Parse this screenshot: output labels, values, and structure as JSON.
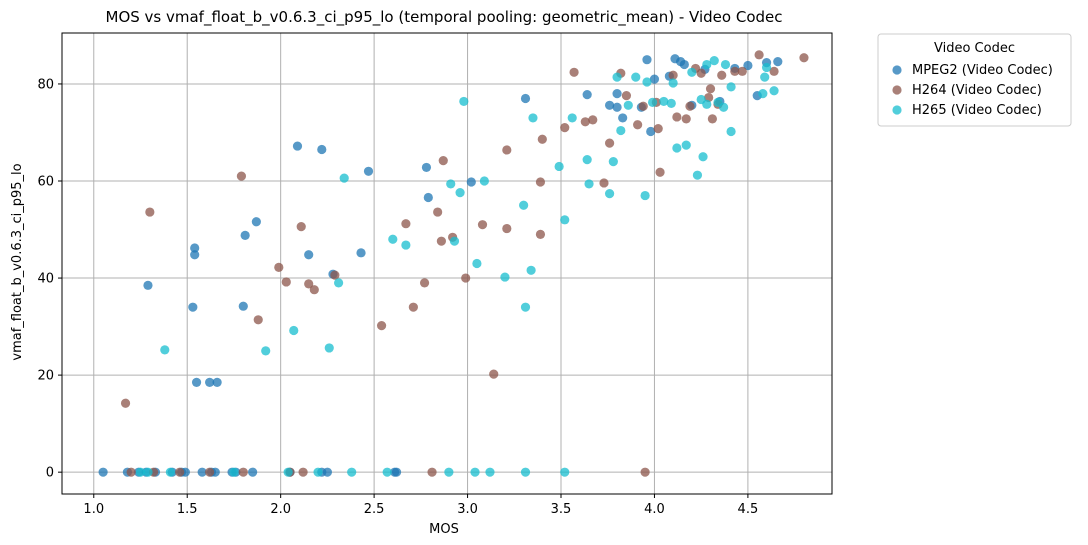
{
  "chart_data": {
    "type": "scatter",
    "title": "MOS vs vmaf_float_b_v0.6.3_ci_p95_lo (temporal pooling: geometric_mean) - Video Codec",
    "xlabel": "MOS",
    "ylabel": "vmaf_float_b_v0.6.3_ci_p95_lo",
    "xlim": [
      0.83,
      4.95
    ],
    "ylim": [
      -4.5,
      90.5
    ],
    "xticks": [
      "1.0",
      "1.5",
      "2.0",
      "2.5",
      "3.0",
      "3.5",
      "4.0",
      "4.5"
    ],
    "yticks": [
      "0",
      "20",
      "40",
      "60",
      "80"
    ],
    "grid": true,
    "legend": {
      "title": "Video Codec",
      "placement": "outside-top-right"
    },
    "series": [
      {
        "name": "MPEG2 (Video Codec)",
        "color": "#1f77b4",
        "points": [
          [
            1.05,
            0
          ],
          [
            1.29,
            38.5
          ],
          [
            1.53,
            34
          ],
          [
            1.54,
            46.2
          ],
          [
            1.54,
            44.8
          ],
          [
            1.55,
            18.5
          ],
          [
            1.62,
            18.5
          ],
          [
            1.66,
            18.5
          ],
          [
            1.8,
            34.2
          ],
          [
            1.81,
            48.8
          ],
          [
            1.87,
            51.6
          ],
          [
            2.09,
            67.2
          ],
          [
            2.15,
            44.8
          ],
          [
            2.22,
            66.5
          ],
          [
            2.28,
            40.8
          ],
          [
            2.43,
            45.2
          ],
          [
            2.47,
            62
          ],
          [
            2.78,
            62.8
          ],
          [
            2.79,
            56.6
          ],
          [
            3.02,
            59.8
          ],
          [
            3.31,
            77
          ],
          [
            3.64,
            77.8
          ],
          [
            3.76,
            75.6
          ],
          [
            3.8,
            75.2
          ],
          [
            3.8,
            78
          ],
          [
            3.83,
            73
          ],
          [
            3.93,
            75.2
          ],
          [
            3.96,
            85
          ],
          [
            3.98,
            70.2
          ],
          [
            4.0,
            81
          ],
          [
            4.11,
            85.2
          ],
          [
            4.14,
            84.6
          ],
          [
            4.16,
            84
          ],
          [
            4.2,
            75.6
          ],
          [
            4.27,
            83
          ],
          [
            4.35,
            76.4
          ],
          [
            4.43,
            83.2
          ],
          [
            4.5,
            83.8
          ],
          [
            4.55,
            77.6
          ],
          [
            4.6,
            84.4
          ],
          [
            4.66,
            84.6
          ],
          [
            4.08,
            81.6
          ],
          [
            1.18,
            0
          ],
          [
            1.24,
            0
          ],
          [
            1.28,
            0
          ],
          [
            1.33,
            0
          ],
          [
            1.42,
            0
          ],
          [
            1.47,
            0
          ],
          [
            1.49,
            0
          ],
          [
            1.58,
            0
          ],
          [
            1.63,
            0
          ],
          [
            1.65,
            0
          ],
          [
            1.74,
            0
          ],
          [
            1.76,
            0
          ],
          [
            1.85,
            0
          ],
          [
            2.05,
            0
          ],
          [
            2.22,
            0
          ],
          [
            2.25,
            0
          ],
          [
            2.61,
            0
          ],
          [
            2.62,
            0
          ]
        ]
      },
      {
        "name": "H264 (Video Codec)",
        "color": "#8c564b",
        "points": [
          [
            1.17,
            14.2
          ],
          [
            1.3,
            53.6
          ],
          [
            1.79,
            61
          ],
          [
            1.88,
            31.4
          ],
          [
            1.99,
            42.2
          ],
          [
            2.03,
            39.2
          ],
          [
            2.11,
            50.6
          ],
          [
            2.15,
            38.8
          ],
          [
            2.18,
            37.6
          ],
          [
            2.29,
            40.6
          ],
          [
            2.54,
            30.2
          ],
          [
            2.67,
            51.2
          ],
          [
            2.71,
            34
          ],
          [
            2.77,
            39
          ],
          [
            2.84,
            53.6
          ],
          [
            2.86,
            47.6
          ],
          [
            2.87,
            64.2
          ],
          [
            2.92,
            48.4
          ],
          [
            2.99,
            40
          ],
          [
            3.08,
            51
          ],
          [
            3.14,
            20.2
          ],
          [
            3.21,
            66.4
          ],
          [
            3.21,
            50.2
          ],
          [
            3.39,
            59.8
          ],
          [
            3.39,
            49
          ],
          [
            3.4,
            68.6
          ],
          [
            3.52,
            71
          ],
          [
            3.57,
            82.4
          ],
          [
            3.63,
            72.2
          ],
          [
            3.67,
            72.6
          ],
          [
            3.73,
            59.6
          ],
          [
            3.76,
            67.8
          ],
          [
            3.82,
            82.2
          ],
          [
            3.85,
            77.6
          ],
          [
            3.91,
            71.6
          ],
          [
            3.94,
            75.4
          ],
          [
            4.01,
            76.2
          ],
          [
            4.02,
            70.8
          ],
          [
            4.03,
            61.8
          ],
          [
            4.1,
            81.8
          ],
          [
            4.12,
            73.2
          ],
          [
            4.17,
            72.8
          ],
          [
            4.19,
            75.4
          ],
          [
            4.22,
            83.2
          ],
          [
            4.25,
            82.2
          ],
          [
            4.29,
            77.2
          ],
          [
            4.3,
            79
          ],
          [
            4.31,
            72.8
          ],
          [
            4.34,
            75.8
          ],
          [
            4.36,
            81.8
          ],
          [
            4.43,
            82.6
          ],
          [
            4.47,
            82.6
          ],
          [
            4.56,
            86
          ],
          [
            4.64,
            82.6
          ],
          [
            4.8,
            85.4
          ],
          [
            1.2,
            0
          ],
          [
            1.32,
            0
          ],
          [
            1.46,
            0
          ],
          [
            1.62,
            0
          ],
          [
            1.8,
            0
          ],
          [
            2.05,
            0
          ],
          [
            2.12,
            0
          ],
          [
            2.81,
            0
          ],
          [
            3.95,
            0
          ]
        ]
      },
      {
        "name": "H265 (Video Codec)",
        "color": "#17becf",
        "points": [
          [
            1.38,
            25.2
          ],
          [
            1.92,
            25
          ],
          [
            2.07,
            29.2
          ],
          [
            2.26,
            25.6
          ],
          [
            2.31,
            39
          ],
          [
            2.34,
            60.6
          ],
          [
            2.6,
            48
          ],
          [
            2.67,
            46.8
          ],
          [
            2.91,
            59.4
          ],
          [
            2.93,
            47.6
          ],
          [
            2.96,
            57.6
          ],
          [
            2.98,
            76.4
          ],
          [
            3.05,
            43
          ],
          [
            3.09,
            60
          ],
          [
            3.2,
            40.2
          ],
          [
            3.3,
            55
          ],
          [
            3.31,
            34
          ],
          [
            3.34,
            41.6
          ],
          [
            3.35,
            73
          ],
          [
            3.49,
            63
          ],
          [
            3.52,
            52
          ],
          [
            3.56,
            73
          ],
          [
            3.64,
            64.4
          ],
          [
            3.65,
            59.4
          ],
          [
            3.76,
            57.4
          ],
          [
            3.78,
            64
          ],
          [
            3.8,
            81.4
          ],
          [
            3.82,
            70.4
          ],
          [
            3.86,
            75.6
          ],
          [
            3.9,
            81.4
          ],
          [
            3.95,
            57
          ],
          [
            3.96,
            80.4
          ],
          [
            3.99,
            76.2
          ],
          [
            4.05,
            76.4
          ],
          [
            4.09,
            76
          ],
          [
            4.1,
            80.2
          ],
          [
            4.12,
            66.8
          ],
          [
            4.17,
            67.4
          ],
          [
            4.2,
            82.4
          ],
          [
            4.23,
            61.2
          ],
          [
            4.25,
            76.8
          ],
          [
            4.26,
            65
          ],
          [
            4.28,
            75.8
          ],
          [
            4.28,
            84
          ],
          [
            4.32,
            84.8
          ],
          [
            4.34,
            76.2
          ],
          [
            4.37,
            75.2
          ],
          [
            4.38,
            84
          ],
          [
            4.41,
            79.4
          ],
          [
            4.41,
            70.2
          ],
          [
            4.58,
            78
          ],
          [
            4.59,
            81.4
          ],
          [
            4.6,
            83.4
          ],
          [
            4.64,
            78.6
          ],
          [
            1.25,
            0
          ],
          [
            1.29,
            0
          ],
          [
            1.41,
            0
          ],
          [
            1.75,
            0
          ],
          [
            2.04,
            0
          ],
          [
            2.2,
            0
          ],
          [
            2.38,
            0
          ],
          [
            2.57,
            0
          ],
          [
            2.9,
            0
          ],
          [
            3.04,
            0
          ],
          [
            3.12,
            0
          ],
          [
            3.31,
            0
          ],
          [
            3.52,
            0
          ]
        ]
      }
    ]
  }
}
